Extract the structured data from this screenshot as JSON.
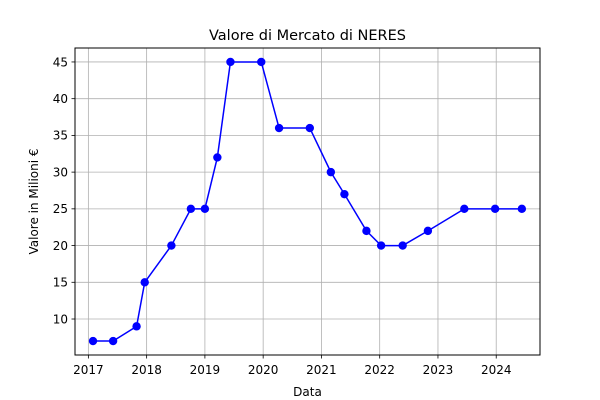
{
  "chart_data": {
    "type": "line",
    "title": "Valore di Mercato di NERES",
    "xlabel": "Data",
    "ylabel": "Valore in Milioni €",
    "grid": true,
    "xlim": [
      "2016-10-09",
      "2024-10-02"
    ],
    "ylim": [
      5.1,
      46.9
    ],
    "xticks": [
      "2017",
      "2018",
      "2019",
      "2020",
      "2021",
      "2022",
      "2023",
      "2024"
    ],
    "yticks": [
      10,
      15,
      20,
      25,
      30,
      35,
      40,
      45
    ],
    "series": [
      {
        "color": "#0000ff",
        "marker": "circle",
        "x": [
          "2017-01-30",
          "2017-06-05",
          "2017-10-30",
          "2017-12-20",
          "2018-06-05",
          "2018-10-05",
          "2019-01-01",
          "2019-03-20",
          "2019-06-10",
          "2019-12-20",
          "2020-04-10",
          "2020-10-20",
          "2021-03-01",
          "2021-05-25",
          "2021-10-10",
          "2022-01-10",
          "2022-05-25",
          "2022-10-30",
          "2023-06-15",
          "2023-12-25",
          "2024-06-10"
        ],
        "values": [
          7,
          7,
          9,
          15,
          20,
          25,
          25,
          32,
          45,
          45,
          36,
          36,
          30,
          27,
          22,
          20,
          20,
          22,
          25,
          25,
          25
        ]
      }
    ]
  }
}
